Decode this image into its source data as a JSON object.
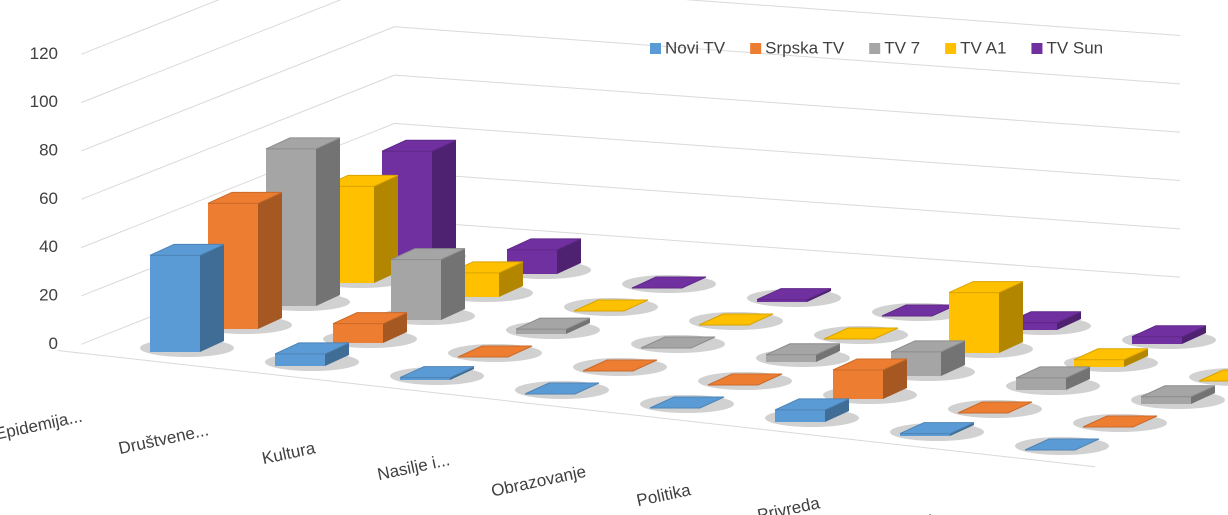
{
  "chart_data": {
    "type": "bar3d",
    "categories": [
      "Epidemija...",
      "Društvene...",
      "Kultura",
      "Nasilje i...",
      "Obrazovanje",
      "Politika",
      "Privreda",
      "Sport"
    ],
    "series": [
      {
        "name": "Novi TV",
        "color": "#5b9bd5",
        "values": [
          40,
          5,
          1,
          0,
          0,
          5,
          1,
          0
        ]
      },
      {
        "name": "Srpska TV",
        "color": "#ed7d31",
        "values": [
          52,
          8,
          0,
          0,
          0,
          12,
          0,
          0
        ]
      },
      {
        "name": "TV 7",
        "color": "#a5a5a5",
        "values": [
          65,
          25,
          2,
          0,
          3,
          10,
          5,
          3
        ]
      },
      {
        "name": "TV A1",
        "color": "#ffc000",
        "values": [
          40,
          10,
          0,
          0,
          0,
          25,
          3,
          0
        ]
      },
      {
        "name": "TV Sun",
        "color": "#7030a0",
        "values": [
          45,
          10,
          0,
          1,
          0,
          3,
          3,
          0
        ]
      }
    ],
    "ylim": [
      0,
      120
    ],
    "yticks": [
      0,
      20,
      40,
      60,
      80,
      100,
      120
    ],
    "grid": true,
    "legend": "top-right"
  }
}
